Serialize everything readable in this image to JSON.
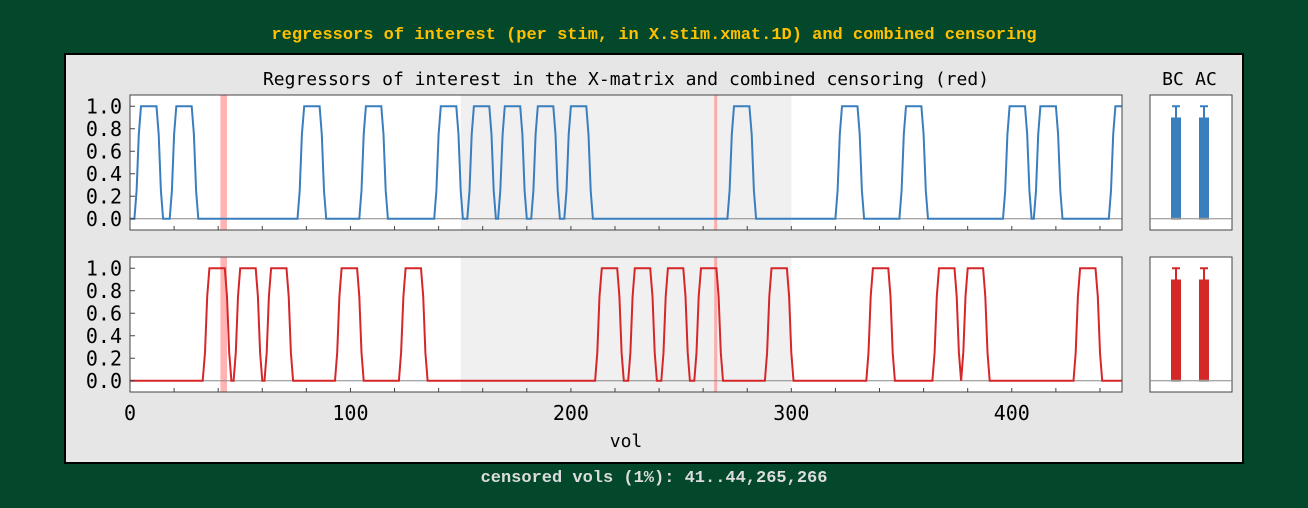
{
  "header": {
    "text": "regressors of interest (per stim, in X.stim.xmat.1D) and combined censoring"
  },
  "footer": {
    "text": "censored vols (1%): 41..44,265,266"
  },
  "chart_data": {
    "type": "line",
    "title": "Regressors of interest in the X-matrix and combined censoring (red)",
    "xlabel": "vol",
    "xlim": [
      0,
      450
    ],
    "ylim": [
      -0.1,
      1.1
    ],
    "xticks": [
      0,
      100,
      200,
      300,
      400
    ],
    "yticks": [
      "1.0",
      "0.8",
      "0.6",
      "0.4",
      "0.2",
      "0.0"
    ],
    "grid": false,
    "shaded_runs": [
      [
        150,
        300
      ]
    ],
    "censored_vols": [
      [
        41,
        44
      ],
      [
        265,
        266
      ]
    ],
    "series": [
      {
        "color": "#3a7fbd",
        "onsets": [
          2,
          18,
          76,
          104,
          138,
          153,
          167,
          182,
          197,
          271,
          320,
          349,
          396,
          410,
          444
        ]
      },
      {
        "color": "#d62728",
        "onsets": [
          33,
          47,
          61,
          93,
          122,
          211,
          226,
          241,
          256,
          288,
          334,
          364,
          377,
          428
        ]
      }
    ],
    "boxplots": {
      "labels": [
        "BC",
        "AC"
      ],
      "series_colors": [
        "#3a7fbd",
        "#d62728"
      ],
      "stats": [
        {
          "min": 0.0,
          "q1": 0.0,
          "median": 0.0,
          "q3": 0.9,
          "max": 1.0
        },
        {
          "min": 0.0,
          "q1": 0.0,
          "median": 0.0,
          "q3": 0.9,
          "max": 1.0
        }
      ]
    }
  }
}
